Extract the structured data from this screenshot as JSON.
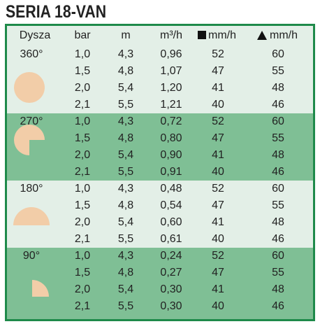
{
  "title": "SERIA 18-VAN",
  "table": {
    "header": [
      "Dysza",
      "bar",
      "m",
      "m³/h",
      "mm/h",
      "mm/h"
    ],
    "groups": [
      {
        "nozzle": "360°",
        "rows": [
          [
            "1,0",
            "4,3",
            "0,96",
            "52",
            "60"
          ],
          [
            "1,5",
            "4,8",
            "1,07",
            "47",
            "55"
          ],
          [
            "2,0",
            "5,4",
            "1,20",
            "41",
            "48"
          ],
          [
            "2,1",
            "5,5",
            "1,21",
            "40",
            "46"
          ]
        ]
      },
      {
        "nozzle": "270°",
        "rows": [
          [
            "1,0",
            "4,3",
            "0,72",
            "52",
            "60"
          ],
          [
            "1,5",
            "4,8",
            "0,80",
            "47",
            "55"
          ],
          [
            "2,0",
            "5,4",
            "0,90",
            "41",
            "48"
          ],
          [
            "2,1",
            "5,5",
            "0,91",
            "40",
            "46"
          ]
        ]
      },
      {
        "nozzle": "180°",
        "rows": [
          [
            "1,0",
            "4,3",
            "0,48",
            "52",
            "60"
          ],
          [
            "1,5",
            "4,8",
            "0,54",
            "47",
            "55"
          ],
          [
            "2,0",
            "5,4",
            "0,60",
            "41",
            "48"
          ],
          [
            "2,1",
            "5,5",
            "0,61",
            "40",
            "46"
          ]
        ]
      },
      {
        "nozzle": "90°",
        "rows": [
          [
            "1,0",
            "4,3",
            "0,24",
            "52",
            "60"
          ],
          [
            "1,5",
            "4,8",
            "0,27",
            "47",
            "55"
          ],
          [
            "2,0",
            "5,4",
            "0,30",
            "41",
            "48"
          ],
          [
            "2,1",
            "5,5",
            "0,30",
            "40",
            "46"
          ]
        ]
      }
    ]
  }
}
